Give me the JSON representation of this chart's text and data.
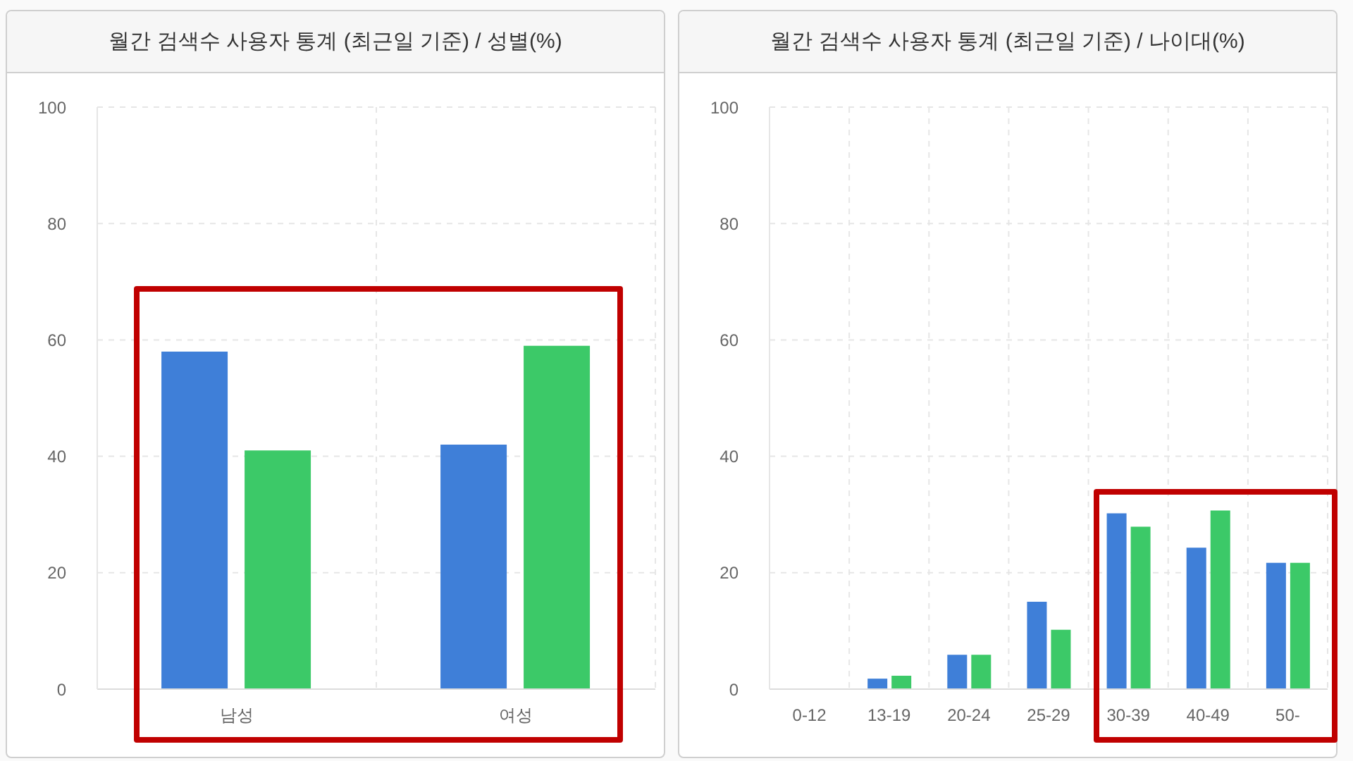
{
  "chart_data": [
    {
      "type": "bar",
      "title": "월간 검색수 사용자 통계 (최근일 기준) / 성별(%)",
      "categories": [
        "남성",
        "여성"
      ],
      "series": [
        {
          "color": "#3f7fd8",
          "values": [
            58,
            42
          ]
        },
        {
          "color": "#3cc968",
          "values": [
            41,
            59
          ]
        }
      ],
      "ylim": [
        0,
        100
      ],
      "yticks": [
        0,
        20,
        40,
        60,
        80,
        100
      ],
      "grid": true,
      "legend": false
    },
    {
      "type": "bar",
      "title": "월간 검색수 사용자 통계 (최근일 기준) / 나이대(%)",
      "categories": [
        "0-12",
        "13-19",
        "20-24",
        "25-29",
        "30-39",
        "40-49",
        "50-"
      ],
      "series": [
        {
          "color": "#3f7fd8",
          "values": [
            0,
            1.8,
            5.9,
            15,
            30.2,
            24.3,
            21.7
          ]
        },
        {
          "color": "#3cc968",
          "values": [
            0,
            2.3,
            5.9,
            10.2,
            27.9,
            30.7,
            21.7
          ]
        }
      ],
      "ylim": [
        0,
        100
      ],
      "yticks": [
        0,
        20,
        40,
        60,
        80,
        100
      ],
      "grid": true,
      "legend": false
    }
  ]
}
